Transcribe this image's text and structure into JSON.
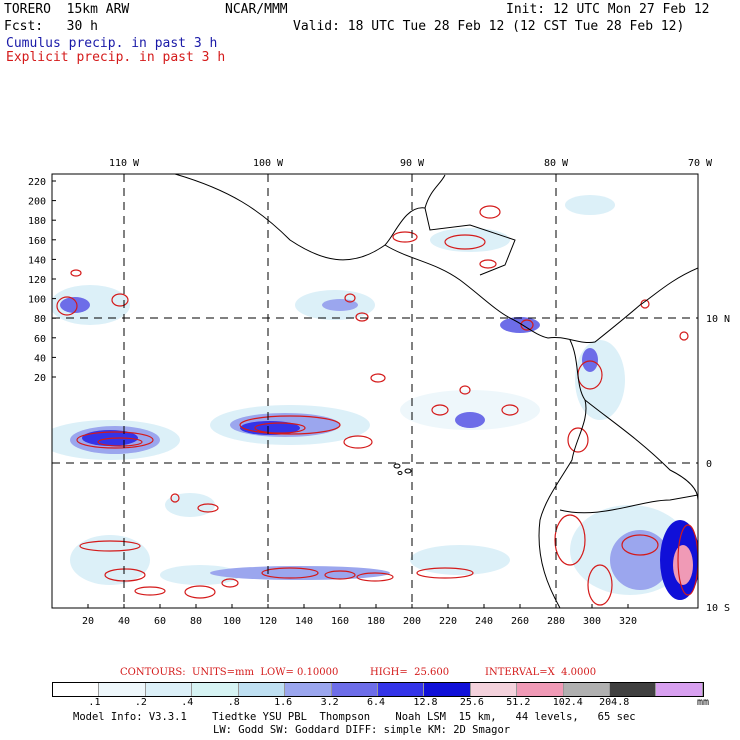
{
  "header": {
    "model": "TORERO  15km ARW",
    "org": "NCAR/MMM",
    "init": "Init: 12 UTC Mon 27 Feb 12",
    "fcst": "Fcst:   30 h",
    "valid": "Valid: 18 UTC Tue 28 Feb 12 (12 CST Tue 28 Feb 12)",
    "cumulus": "Cumulus precip. in past 3 h",
    "explicit": "Explicit precip. in past 3 h"
  },
  "map": {
    "lon_labels": [
      "110 W",
      "100 W",
      "90 W",
      "80 W",
      "70 W"
    ],
    "lat_labels": [
      "10 N",
      "0",
      "10 S"
    ],
    "x_ticks": [
      "20",
      "40",
      "60",
      "80",
      "100",
      "120",
      "140",
      "160",
      "180",
      "200",
      "220",
      "240",
      "260",
      "280",
      "300",
      "320"
    ],
    "y_ticks": [
      "220",
      "200",
      "180",
      "160",
      "140",
      "120",
      "100",
      "80",
      "60",
      "40",
      "20"
    ]
  },
  "contour_info": {
    "units": "CONTOURS:  UNITS=mm  LOW= 0.10000",
    "high": "HIGH=  25.600",
    "interval": "INTERVAL=X  4.0000"
  },
  "colorbar": {
    "colors": [
      "#ffffff",
      "#eef7fb",
      "#dcf0f8",
      "#d6f3f3",
      "#bfe0f2",
      "#9ba6ee",
      "#6d6de8",
      "#3434e8",
      "#1010d8",
      "#f4d2dc",
      "#f09ab6",
      "#b0b0b0",
      "#404040",
      "#d8a0f0"
    ],
    "labels": [
      ".1",
      ".2",
      ".4",
      ".8",
      "1.6",
      "3.2",
      "6.4",
      "12.8",
      "25.6",
      "51.2",
      "102.4",
      "204.8"
    ],
    "unit": "mm"
  },
  "footer": {
    "line1": "Model Info: V3.3.1    Tiedtke YSU PBL  Thompson    Noah LSM  15 km,   44 levels,   65 sec",
    "line2": "LW: Godd SW: Goddard DIFF: simple KM: 2D Smagor"
  }
}
